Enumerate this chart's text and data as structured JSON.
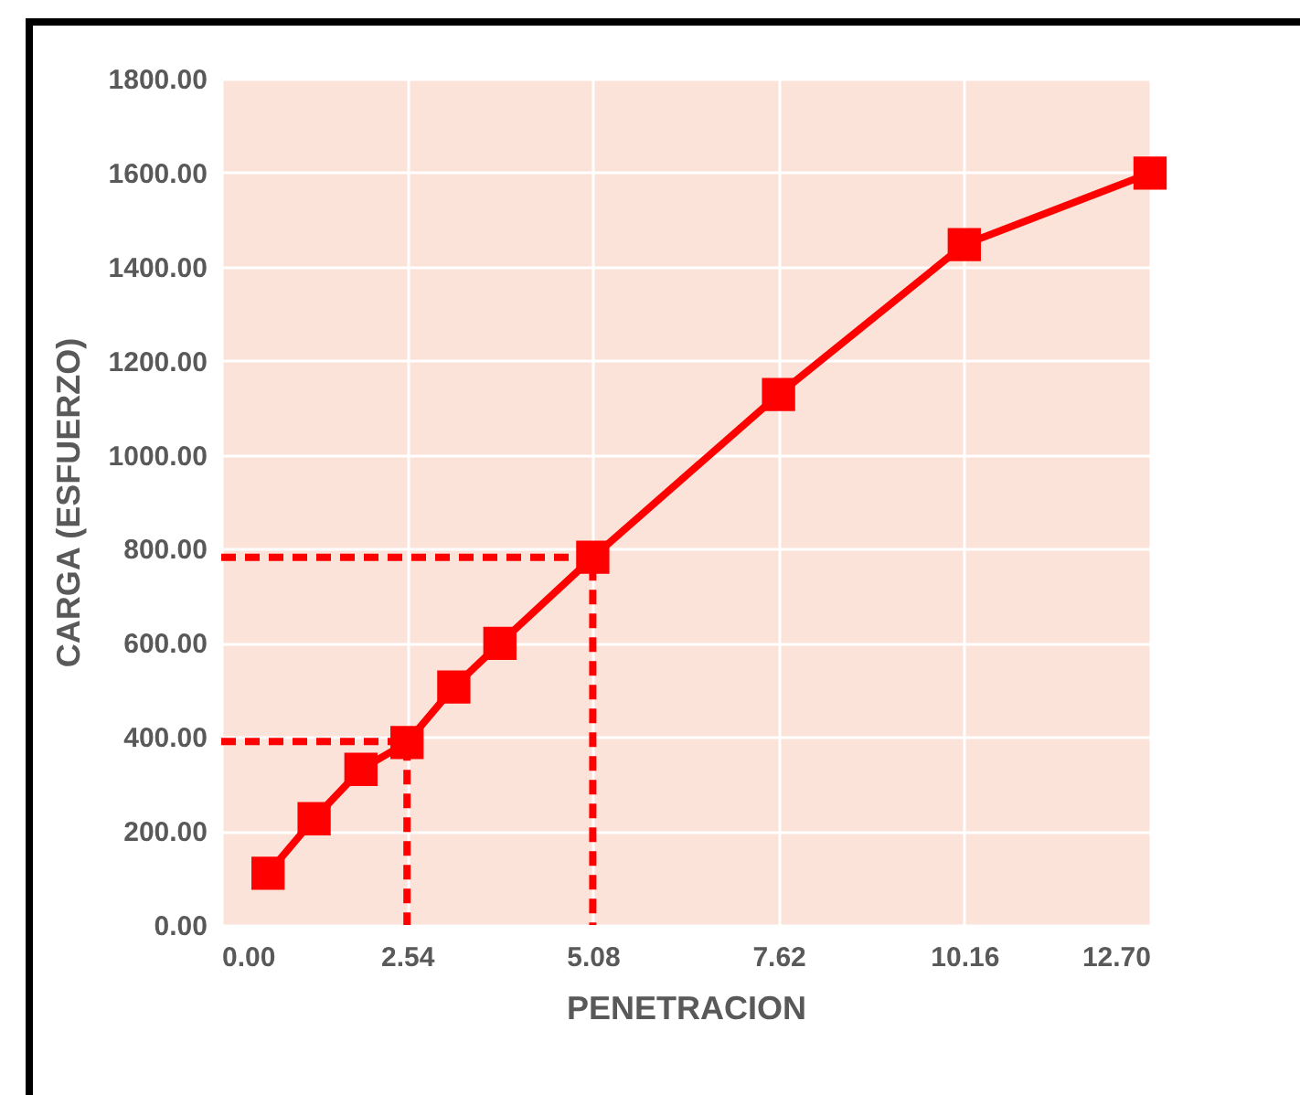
{
  "chart_data": {
    "type": "line",
    "xlabel": "PENETRACION",
    "ylabel": "CARGA (ESFUERZO)",
    "xlim": [
      0,
      12.7
    ],
    "xticks": [
      {
        "value": 0,
        "label": "0.00"
      },
      {
        "value": 2.54,
        "label": "2.54"
      },
      {
        "value": 5.08,
        "label": "5.08"
      },
      {
        "value": 7.62,
        "label": "7.62"
      },
      {
        "value": 10.16,
        "label": "10.16"
      },
      {
        "value": 12.7,
        "label": "12.70"
      }
    ],
    "ylim": [
      0,
      1800
    ],
    "yticks": [
      {
        "value": 0,
        "label": "0.00"
      },
      {
        "value": 200,
        "label": "200.00"
      },
      {
        "value": 400,
        "label": "400.00"
      },
      {
        "value": 600,
        "label": "600.00"
      },
      {
        "value": 800,
        "label": "800.00"
      },
      {
        "value": 1000,
        "label": "1000.00"
      },
      {
        "value": 1200,
        "label": "1200.00"
      },
      {
        "value": 1400,
        "label": "1400.00"
      },
      {
        "value": 1600,
        "label": "1600.00"
      },
      {
        "value": 1800,
        "label": "1800.00"
      }
    ],
    "grid": true,
    "marker": "square",
    "line_style": "solid",
    "series": [
      {
        "color": "#ff0000",
        "x": [
          0.64,
          1.27,
          1.91,
          2.54,
          3.18,
          3.81,
          5.08,
          7.62,
          10.16,
          12.7
        ],
        "values": [
          110,
          226,
          331,
          388,
          506,
          599,
          782,
          1128,
          1447,
          1599
        ]
      },
      {
        "type": "line",
        "color": "#ff0000",
        "marker": "none",
        "line_style": "dashed",
        "x": [
          0,
          2.54,
          2.54
        ],
        "values": [
          390,
          390,
          0
        ]
      },
      {
        "type": "line",
        "color": "#ff0000",
        "marker": "none",
        "line_style": "dashed",
        "x": [
          0,
          5.08,
          5.08
        ],
        "values": [
          782,
          782,
          0
        ]
      }
    ]
  }
}
